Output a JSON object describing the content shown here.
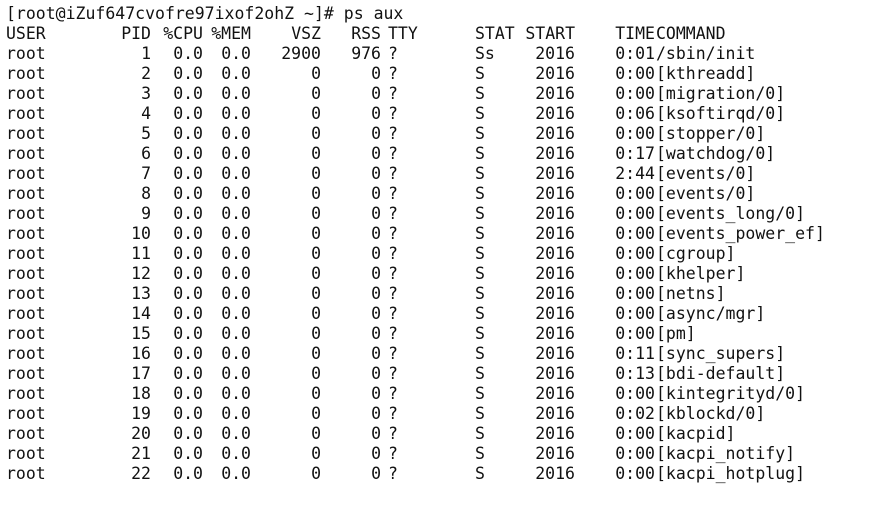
{
  "terminal": {
    "prompt": "[root@iZuf647cvofre97ixof2ohZ ~]#",
    "command": "ps aux",
    "headers": {
      "user": "USER",
      "pid": "PID",
      "cpu": "%CPU",
      "mem": "%MEM",
      "vsz": "VSZ",
      "rss": "RSS",
      "tty": "TTY",
      "stat": "STAT",
      "start": "START",
      "time": "TIME",
      "command": "COMMAND"
    },
    "rows": [
      {
        "user": "root",
        "pid": "1",
        "cpu": "0.0",
        "mem": "0.0",
        "vsz": "2900",
        "rss": "976",
        "tty": "?",
        "stat": "Ss",
        "start": "2016",
        "time": "0:01",
        "command": "/sbin/init"
      },
      {
        "user": "root",
        "pid": "2",
        "cpu": "0.0",
        "mem": "0.0",
        "vsz": "0",
        "rss": "0",
        "tty": "?",
        "stat": "S",
        "start": "2016",
        "time": "0:00",
        "command": "[kthreadd]"
      },
      {
        "user": "root",
        "pid": "3",
        "cpu": "0.0",
        "mem": "0.0",
        "vsz": "0",
        "rss": "0",
        "tty": "?",
        "stat": "S",
        "start": "2016",
        "time": "0:00",
        "command": "[migration/0]"
      },
      {
        "user": "root",
        "pid": "4",
        "cpu": "0.0",
        "mem": "0.0",
        "vsz": "0",
        "rss": "0",
        "tty": "?",
        "stat": "S",
        "start": "2016",
        "time": "0:06",
        "command": "[ksoftirqd/0]"
      },
      {
        "user": "root",
        "pid": "5",
        "cpu": "0.0",
        "mem": "0.0",
        "vsz": "0",
        "rss": "0",
        "tty": "?",
        "stat": "S",
        "start": "2016",
        "time": "0:00",
        "command": "[stopper/0]"
      },
      {
        "user": "root",
        "pid": "6",
        "cpu": "0.0",
        "mem": "0.0",
        "vsz": "0",
        "rss": "0",
        "tty": "?",
        "stat": "S",
        "start": "2016",
        "time": "0:17",
        "command": "[watchdog/0]"
      },
      {
        "user": "root",
        "pid": "7",
        "cpu": "0.0",
        "mem": "0.0",
        "vsz": "0",
        "rss": "0",
        "tty": "?",
        "stat": "S",
        "start": "2016",
        "time": "2:44",
        "command": "[events/0]"
      },
      {
        "user": "root",
        "pid": "8",
        "cpu": "0.0",
        "mem": "0.0",
        "vsz": "0",
        "rss": "0",
        "tty": "?",
        "stat": "S",
        "start": "2016",
        "time": "0:00",
        "command": "[events/0]"
      },
      {
        "user": "root",
        "pid": "9",
        "cpu": "0.0",
        "mem": "0.0",
        "vsz": "0",
        "rss": "0",
        "tty": "?",
        "stat": "S",
        "start": "2016",
        "time": "0:00",
        "command": "[events_long/0]"
      },
      {
        "user": "root",
        "pid": "10",
        "cpu": "0.0",
        "mem": "0.0",
        "vsz": "0",
        "rss": "0",
        "tty": "?",
        "stat": "S",
        "start": "2016",
        "time": "0:00",
        "command": "[events_power_ef]"
      },
      {
        "user": "root",
        "pid": "11",
        "cpu": "0.0",
        "mem": "0.0",
        "vsz": "0",
        "rss": "0",
        "tty": "?",
        "stat": "S",
        "start": "2016",
        "time": "0:00",
        "command": "[cgroup]"
      },
      {
        "user": "root",
        "pid": "12",
        "cpu": "0.0",
        "mem": "0.0",
        "vsz": "0",
        "rss": "0",
        "tty": "?",
        "stat": "S",
        "start": "2016",
        "time": "0:00",
        "command": "[khelper]"
      },
      {
        "user": "root",
        "pid": "13",
        "cpu": "0.0",
        "mem": "0.0",
        "vsz": "0",
        "rss": "0",
        "tty": "?",
        "stat": "S",
        "start": "2016",
        "time": "0:00",
        "command": "[netns]"
      },
      {
        "user": "root",
        "pid": "14",
        "cpu": "0.0",
        "mem": "0.0",
        "vsz": "0",
        "rss": "0",
        "tty": "?",
        "stat": "S",
        "start": "2016",
        "time": "0:00",
        "command": "[async/mgr]"
      },
      {
        "user": "root",
        "pid": "15",
        "cpu": "0.0",
        "mem": "0.0",
        "vsz": "0",
        "rss": "0",
        "tty": "?",
        "stat": "S",
        "start": "2016",
        "time": "0:00",
        "command": "[pm]"
      },
      {
        "user": "root",
        "pid": "16",
        "cpu": "0.0",
        "mem": "0.0",
        "vsz": "0",
        "rss": "0",
        "tty": "?",
        "stat": "S",
        "start": "2016",
        "time": "0:11",
        "command": "[sync_supers]"
      },
      {
        "user": "root",
        "pid": "17",
        "cpu": "0.0",
        "mem": "0.0",
        "vsz": "0",
        "rss": "0",
        "tty": "?",
        "stat": "S",
        "start": "2016",
        "time": "0:13",
        "command": "[bdi-default]"
      },
      {
        "user": "root",
        "pid": "18",
        "cpu": "0.0",
        "mem": "0.0",
        "vsz": "0",
        "rss": "0",
        "tty": "?",
        "stat": "S",
        "start": "2016",
        "time": "0:00",
        "command": "[kintegrityd/0]"
      },
      {
        "user": "root",
        "pid": "19",
        "cpu": "0.0",
        "mem": "0.0",
        "vsz": "0",
        "rss": "0",
        "tty": "?",
        "stat": "S",
        "start": "2016",
        "time": "0:02",
        "command": "[kblockd/0]"
      },
      {
        "user": "root",
        "pid": "20",
        "cpu": "0.0",
        "mem": "0.0",
        "vsz": "0",
        "rss": "0",
        "tty": "?",
        "stat": "S",
        "start": "2016",
        "time": "0:00",
        "command": "[kacpid]"
      },
      {
        "user": "root",
        "pid": "21",
        "cpu": "0.0",
        "mem": "0.0",
        "vsz": "0",
        "rss": "0",
        "tty": "?",
        "stat": "S",
        "start": "2016",
        "time": "0:00",
        "command": "[kacpi_notify]"
      },
      {
        "user": "root",
        "pid": "22",
        "cpu": "0.0",
        "mem": "0.0",
        "vsz": "0",
        "rss": "0",
        "tty": "?",
        "stat": "S",
        "start": "2016",
        "time": "0:00",
        "command": "[kacpi_hotplug]"
      }
    ]
  },
  "colors": {
    "background": "#ffffff",
    "text": "#111111"
  }
}
